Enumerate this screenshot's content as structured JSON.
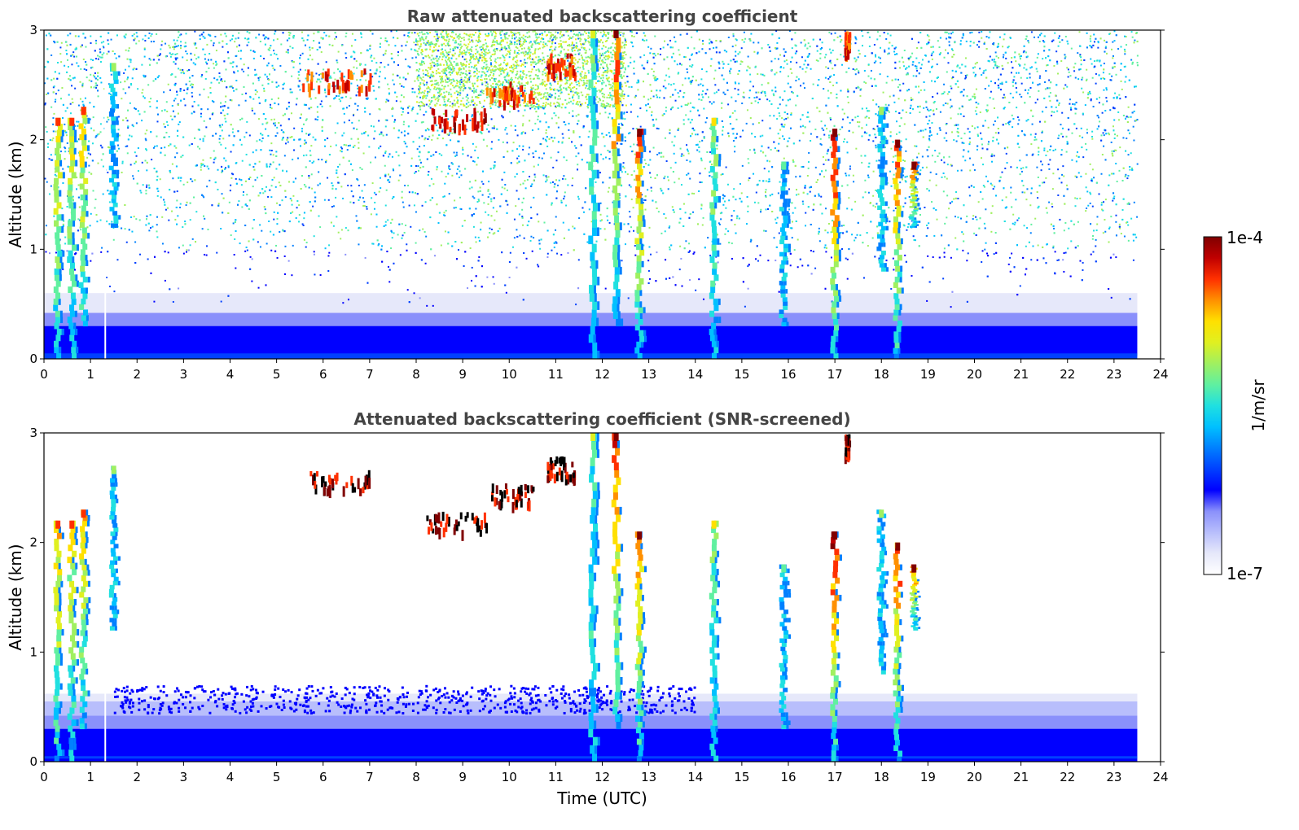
{
  "chart_data": [
    {
      "type": "heatmap",
      "title": "Raw attenuated backscattering coefficient",
      "xlabel": "",
      "ylabel": "Altitude (km)",
      "xlim": [
        0,
        24
      ],
      "ylim": [
        0,
        3
      ],
      "x_ticks": [
        "0",
        "1",
        "2",
        "3",
        "4",
        "5",
        "6",
        "7",
        "8",
        "9",
        "10",
        "11",
        "12",
        "13",
        "14",
        "15",
        "16",
        "17",
        "18",
        "19",
        "20",
        "21",
        "22",
        "23",
        "24"
      ],
      "y_ticks": [
        "0",
        "1",
        "2",
        "3"
      ],
      "data_end_hour": 23.5,
      "noise_level": "high",
      "cloud_features": [
        {
          "time": 0.3,
          "alt_bottom": 0.0,
          "alt_top": 2.2,
          "intensity": 0.75
        },
        {
          "time": 0.6,
          "alt_bottom": 0.0,
          "alt_top": 2.2,
          "intensity": 0.7
        },
        {
          "time": 0.85,
          "alt_bottom": 0.3,
          "alt_top": 2.3,
          "intensity": 0.75
        },
        {
          "time": 1.5,
          "alt_bottom": 1.2,
          "alt_top": 2.7,
          "intensity": 0.45
        },
        {
          "time": 11.8,
          "alt_bottom": 0.0,
          "alt_top": 3.0,
          "intensity": 0.55
        },
        {
          "time": 12.3,
          "alt_bottom": 0.3,
          "alt_top": 3.0,
          "intensity": 0.9
        },
        {
          "time": 12.8,
          "alt_bottom": 0.0,
          "alt_top": 2.1,
          "intensity": 0.85
        },
        {
          "time": 14.4,
          "alt_bottom": 0.0,
          "alt_top": 2.2,
          "intensity": 0.6
        },
        {
          "time": 15.9,
          "alt_bottom": 0.3,
          "alt_top": 1.8,
          "intensity": 0.4
        },
        {
          "time": 17.0,
          "alt_bottom": 0.0,
          "alt_top": 2.1,
          "intensity": 0.95
        },
        {
          "time": 18.0,
          "alt_bottom": 0.8,
          "alt_top": 2.3,
          "intensity": 0.45
        },
        {
          "time": 18.35,
          "alt_bottom": 0.0,
          "alt_top": 2.0,
          "intensity": 0.85
        },
        {
          "time": 18.7,
          "alt_bottom": 1.2,
          "alt_top": 1.8,
          "intensity": 0.85
        }
      ],
      "high_layers": [
        {
          "t_start": 5.5,
          "t_end": 7.0,
          "alt": 2.57,
          "intensity": 0.95
        },
        {
          "t_start": 8.2,
          "t_end": 9.5,
          "alt": 2.2,
          "intensity": 1.0
        },
        {
          "t_start": 9.5,
          "t_end": 10.5,
          "alt": 2.45,
          "intensity": 0.95
        },
        {
          "t_start": 10.8,
          "t_end": 11.4,
          "alt": 2.7,
          "intensity": 0.95
        },
        {
          "t_start": 17.2,
          "t_end": 17.3,
          "alt": 2.9,
          "intensity": 0.95
        }
      ]
    },
    {
      "type": "heatmap",
      "title": "Attenuated backscattering coefficient (SNR-screened)",
      "xlabel": "Time (UTC)",
      "ylabel": "Altitude (km)",
      "xlim": [
        0,
        24
      ],
      "ylim": [
        0,
        3
      ],
      "x_ticks": [
        "0",
        "1",
        "2",
        "3",
        "4",
        "5",
        "6",
        "7",
        "8",
        "9",
        "10",
        "11",
        "12",
        "13",
        "14",
        "15",
        "16",
        "17",
        "18",
        "19",
        "20",
        "21",
        "22",
        "23",
        "24"
      ],
      "y_ticks": [
        "0",
        "1",
        "2",
        "3"
      ],
      "data_end_hour": 23.5,
      "noise_level": "screened",
      "boundary_layer_top_km": 0.55
    }
  ],
  "colorbar": {
    "label": "1/m/sr",
    "min_label": "1e-7",
    "max_label": "1e-4",
    "colormap": "jet",
    "colors": [
      "#ffffff",
      "#e6e8fa",
      "#b8befc",
      "#8a90fb",
      "#0000ff",
      "#0040ff",
      "#0080ff",
      "#00c0ff",
      "#20e0e0",
      "#60f0a0",
      "#a0f060",
      "#e0f020",
      "#ffe000",
      "#ff9000",
      "#ff3000",
      "#c00000",
      "#800000"
    ]
  }
}
